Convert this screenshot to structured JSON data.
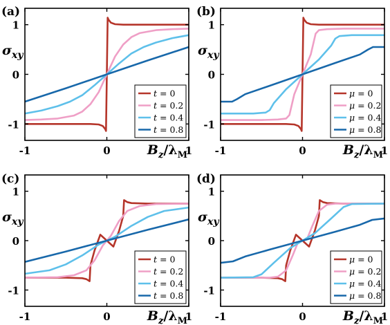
{
  "colors": {
    "t0": "#b5352a",
    "t02": "#ef9fc6",
    "t04": "#5ec0ea",
    "t08": "#1868aa"
  },
  "chart_data": [
    {
      "panel": "(a)",
      "type": "line",
      "ylabel": "σ_xy",
      "xlabel": "B_z/λ_M",
      "xticks": [
        "-1",
        "0",
        "1"
      ],
      "yticks": [
        "1",
        "0",
        "-1"
      ],
      "xlim": [
        -1,
        1
      ],
      "ylim": [
        -1.33,
        1.33
      ],
      "grid": false,
      "legend": "bottom-right",
      "series": [
        {
          "name": "t = 0",
          "param": "t",
          "val": "0",
          "color_key": "t0",
          "points": [
            [
              -1,
              -1
            ],
            [
              -0.5,
              -1
            ],
            [
              -0.2,
              -1
            ],
            [
              -0.1,
              -1.01
            ],
            [
              -0.05,
              -1.04
            ],
            [
              -0.02,
              -1.1
            ],
            [
              -0.01,
              -1.14
            ],
            [
              0,
              0
            ],
            [
              0.01,
              1.14
            ],
            [
              0.02,
              1.1
            ],
            [
              0.05,
              1.04
            ],
            [
              0.1,
              1.01
            ],
            [
              0.2,
              1
            ],
            [
              0.5,
              1
            ],
            [
              1,
              1
            ]
          ]
        },
        {
          "name": "t = 0.2",
          "param": "t",
          "val": "0.2",
          "color_key": "t02",
          "points": [
            [
              -1,
              -0.92
            ],
            [
              -0.8,
              -0.91
            ],
            [
              -0.6,
              -0.89
            ],
            [
              -0.4,
              -0.83
            ],
            [
              -0.3,
              -0.75
            ],
            [
              -0.2,
              -0.6
            ],
            [
              -0.1,
              -0.36
            ],
            [
              0,
              0
            ],
            [
              0.1,
              0.36
            ],
            [
              0.2,
              0.6
            ],
            [
              0.3,
              0.75
            ],
            [
              0.4,
              0.83
            ],
            [
              0.6,
              0.89
            ],
            [
              0.8,
              0.91
            ],
            [
              1,
              0.92
            ]
          ]
        },
        {
          "name": "t = 0.4",
          "param": "t",
          "val": "0.4",
          "color_key": "t04",
          "points": [
            [
              -1,
              -0.79
            ],
            [
              -0.8,
              -0.73
            ],
            [
              -0.6,
              -0.64
            ],
            [
              -0.45,
              -0.55
            ],
            [
              -0.3,
              -0.42
            ],
            [
              -0.15,
              -0.22
            ],
            [
              0,
              0
            ],
            [
              0.15,
              0.22
            ],
            [
              0.3,
              0.42
            ],
            [
              0.45,
              0.55
            ],
            [
              0.6,
              0.64
            ],
            [
              0.8,
              0.73
            ],
            [
              1,
              0.79
            ]
          ]
        },
        {
          "name": "t = 0.8",
          "param": "t",
          "val": "0.8",
          "color_key": "t08",
          "points": [
            [
              -1,
              -0.55
            ],
            [
              -0.5,
              -0.28
            ],
            [
              0,
              0
            ],
            [
              0.5,
              0.28
            ],
            [
              1,
              0.55
            ]
          ]
        }
      ]
    },
    {
      "panel": "(b)",
      "type": "line",
      "ylabel": "σ_xy",
      "xlabel": "B_z/λ_M",
      "xticks": [
        "-1",
        "0",
        "1"
      ],
      "yticks": [
        "1",
        "0",
        "-1"
      ],
      "xlim": [
        -1,
        1
      ],
      "ylim": [
        -1.33,
        1.33
      ],
      "grid": false,
      "legend": "bottom-right",
      "series": [
        {
          "name": "μ = 0",
          "param": "μ",
          "val": "0",
          "color_key": "t0",
          "points": [
            [
              -1,
              -1
            ],
            [
              -0.5,
              -1
            ],
            [
              -0.2,
              -1
            ],
            [
              -0.1,
              -1.01
            ],
            [
              -0.05,
              -1.04
            ],
            [
              -0.02,
              -1.1
            ],
            [
              -0.01,
              -1.14
            ],
            [
              0,
              0
            ],
            [
              0.01,
              1.14
            ],
            [
              0.02,
              1.1
            ],
            [
              0.05,
              1.04
            ],
            [
              0.1,
              1.01
            ],
            [
              0.2,
              1
            ],
            [
              0.5,
              1
            ],
            [
              1,
              1
            ]
          ]
        },
        {
          "name": "μ = 0.2",
          "param": "μ",
          "val": "0.2",
          "color_key": "t02",
          "points": [
            [
              -1,
              -0.92
            ],
            [
              -0.5,
              -0.92
            ],
            [
              -0.3,
              -0.91
            ],
            [
              -0.2,
              -0.89
            ],
            [
              -0.16,
              -0.82
            ],
            [
              -0.1,
              -0.4
            ],
            [
              0,
              0
            ],
            [
              0.1,
              0.4
            ],
            [
              0.16,
              0.82
            ],
            [
              0.2,
              0.89
            ],
            [
              0.3,
              0.91
            ],
            [
              0.5,
              0.92
            ],
            [
              1,
              0.92
            ]
          ]
        },
        {
          "name": "μ = 0.4",
          "param": "μ",
          "val": "0.4",
          "color_key": "t04",
          "points": [
            [
              -1,
              -0.79
            ],
            [
              -0.6,
              -0.79
            ],
            [
              -0.45,
              -0.77
            ],
            [
              -0.4,
              -0.72
            ],
            [
              -0.35,
              -0.58
            ],
            [
              -0.2,
              -0.3
            ],
            [
              0,
              0
            ],
            [
              0.2,
              0.3
            ],
            [
              0.35,
              0.58
            ],
            [
              0.4,
              0.72
            ],
            [
              0.45,
              0.77
            ],
            [
              0.6,
              0.79
            ],
            [
              1,
              0.79
            ]
          ]
        },
        {
          "name": "μ = 0.8",
          "param": "μ",
          "val": "0.8",
          "color_key": "t08",
          "points": [
            [
              -1,
              -0.55
            ],
            [
              -0.86,
              -0.55
            ],
            [
              -0.8,
              -0.5
            ],
            [
              -0.7,
              -0.4
            ],
            [
              -0.4,
              -0.23
            ],
            [
              0,
              0
            ],
            [
              0.4,
              0.23
            ],
            [
              0.7,
              0.4
            ],
            [
              0.8,
              0.5
            ],
            [
              0.86,
              0.55
            ],
            [
              1,
              0.55
            ]
          ]
        }
      ]
    },
    {
      "panel": "(c)",
      "type": "line",
      "ylabel": "σ_xy",
      "xlabel": "B_z/λ_M",
      "xticks": [
        "-1",
        "0",
        "1"
      ],
      "yticks": [
        "1",
        "0",
        "-1"
      ],
      "xlim": [
        -1,
        1
      ],
      "ylim": [
        -1.33,
        1.33
      ],
      "grid": false,
      "legend": "bottom-right",
      "series": [
        {
          "name": "t = 0",
          "param": "t",
          "val": "0",
          "color_key": "t0",
          "points": [
            [
              -1,
              -0.75
            ],
            [
              -0.5,
              -0.75
            ],
            [
              -0.3,
              -0.76
            ],
            [
              -0.25,
              -0.78
            ],
            [
              -0.21,
              -0.82
            ],
            [
              -0.2,
              -0.5
            ],
            [
              -0.15,
              -0.2
            ],
            [
              -0.08,
              0.12
            ],
            [
              0,
              0
            ],
            [
              0.08,
              -0.12
            ],
            [
              0.15,
              0.2
            ],
            [
              0.2,
              0.5
            ],
            [
              0.21,
              0.82
            ],
            [
              0.25,
              0.78
            ],
            [
              0.3,
              0.76
            ],
            [
              0.5,
              0.75
            ],
            [
              1,
              0.75
            ]
          ]
        },
        {
          "name": "t = 0.2",
          "param": "t",
          "val": "0.2",
          "color_key": "t02",
          "points": [
            [
              -1,
              -0.75
            ],
            [
              -0.6,
              -0.74
            ],
            [
              -0.4,
              -0.7
            ],
            [
              -0.25,
              -0.6
            ],
            [
              -0.15,
              -0.4
            ],
            [
              -0.05,
              -0.1
            ],
            [
              0,
              0
            ],
            [
              0.05,
              0.1
            ],
            [
              0.15,
              0.4
            ],
            [
              0.25,
              0.6
            ],
            [
              0.4,
              0.7
            ],
            [
              0.6,
              0.74
            ],
            [
              1,
              0.75
            ]
          ]
        },
        {
          "name": "t = 0.4",
          "param": "t",
          "val": "0.4",
          "color_key": "t04",
          "points": [
            [
              -1,
              -0.67
            ],
            [
              -0.7,
              -0.6
            ],
            [
              -0.5,
              -0.48
            ],
            [
              -0.3,
              -0.3
            ],
            [
              -0.1,
              -0.08
            ],
            [
              0,
              0
            ],
            [
              0.1,
              0.08
            ],
            [
              0.3,
              0.3
            ],
            [
              0.5,
              0.48
            ],
            [
              0.7,
              0.6
            ],
            [
              1,
              0.67
            ]
          ]
        },
        {
          "name": "t = 0.8",
          "param": "t",
          "val": "0.8",
          "color_key": "t08",
          "points": [
            [
              -1,
              -0.43
            ],
            [
              -0.5,
              -0.22
            ],
            [
              0,
              0
            ],
            [
              0.5,
              0.22
            ],
            [
              1,
              0.43
            ]
          ]
        }
      ]
    },
    {
      "panel": "(d)",
      "type": "line",
      "ylabel": "σ_xy",
      "xlabel": "B_z/λ_M",
      "xticks": [
        "-1",
        "0",
        "1"
      ],
      "yticks": [
        "1",
        "0",
        "-1"
      ],
      "xlim": [
        -1,
        1
      ],
      "ylim": [
        -1.33,
        1.33
      ],
      "grid": false,
      "legend": "bottom-right",
      "series": [
        {
          "name": "μ = 0",
          "param": "μ",
          "val": "0",
          "color_key": "t0",
          "points": [
            [
              -1,
              -0.75
            ],
            [
              -0.5,
              -0.75
            ],
            [
              -0.3,
              -0.76
            ],
            [
              -0.25,
              -0.78
            ],
            [
              -0.21,
              -0.82
            ],
            [
              -0.2,
              -0.5
            ],
            [
              -0.15,
              -0.2
            ],
            [
              -0.08,
              0.12
            ],
            [
              0,
              0
            ],
            [
              0.08,
              -0.12
            ],
            [
              0.15,
              0.2
            ],
            [
              0.2,
              0.5
            ],
            [
              0.21,
              0.82
            ],
            [
              0.25,
              0.78
            ],
            [
              0.3,
              0.76
            ],
            [
              0.5,
              0.75
            ],
            [
              1,
              0.75
            ]
          ]
        },
        {
          "name": "μ = 0.2",
          "param": "μ",
          "val": "0.2",
          "color_key": "t02",
          "points": [
            [
              -1,
              -0.75
            ],
            [
              -0.4,
              -0.75
            ],
            [
              -0.3,
              -0.73
            ],
            [
              -0.2,
              -0.6
            ],
            [
              -0.12,
              -0.3
            ],
            [
              -0.06,
              -0.05
            ],
            [
              0,
              0
            ],
            [
              0.06,
              0.05
            ],
            [
              0.12,
              0.3
            ],
            [
              0.2,
              0.6
            ],
            [
              0.3,
              0.73
            ],
            [
              0.4,
              0.75
            ],
            [
              1,
              0.75
            ]
          ]
        },
        {
          "name": "μ = 0.4",
          "param": "μ",
          "val": "0.4",
          "color_key": "t04",
          "points": [
            [
              -1,
              -0.75
            ],
            [
              -0.6,
              -0.74
            ],
            [
              -0.5,
              -0.68
            ],
            [
              -0.35,
              -0.45
            ],
            [
              -0.15,
              -0.15
            ],
            [
              0,
              0
            ],
            [
              0.15,
              0.15
            ],
            [
              0.35,
              0.45
            ],
            [
              0.5,
              0.68
            ],
            [
              0.6,
              0.74
            ],
            [
              1,
              0.75
            ]
          ]
        },
        {
          "name": "μ = 0.8",
          "param": "μ",
          "val": "0.8",
          "color_key": "t08",
          "points": [
            [
              -1,
              -0.45
            ],
            [
              -0.85,
              -0.42
            ],
            [
              -0.7,
              -0.32
            ],
            [
              -0.4,
              -0.18
            ],
            [
              0,
              0
            ],
            [
              0.4,
              0.18
            ],
            [
              0.7,
              0.32
            ],
            [
              0.85,
              0.42
            ],
            [
              1,
              0.45
            ]
          ]
        }
      ]
    }
  ]
}
